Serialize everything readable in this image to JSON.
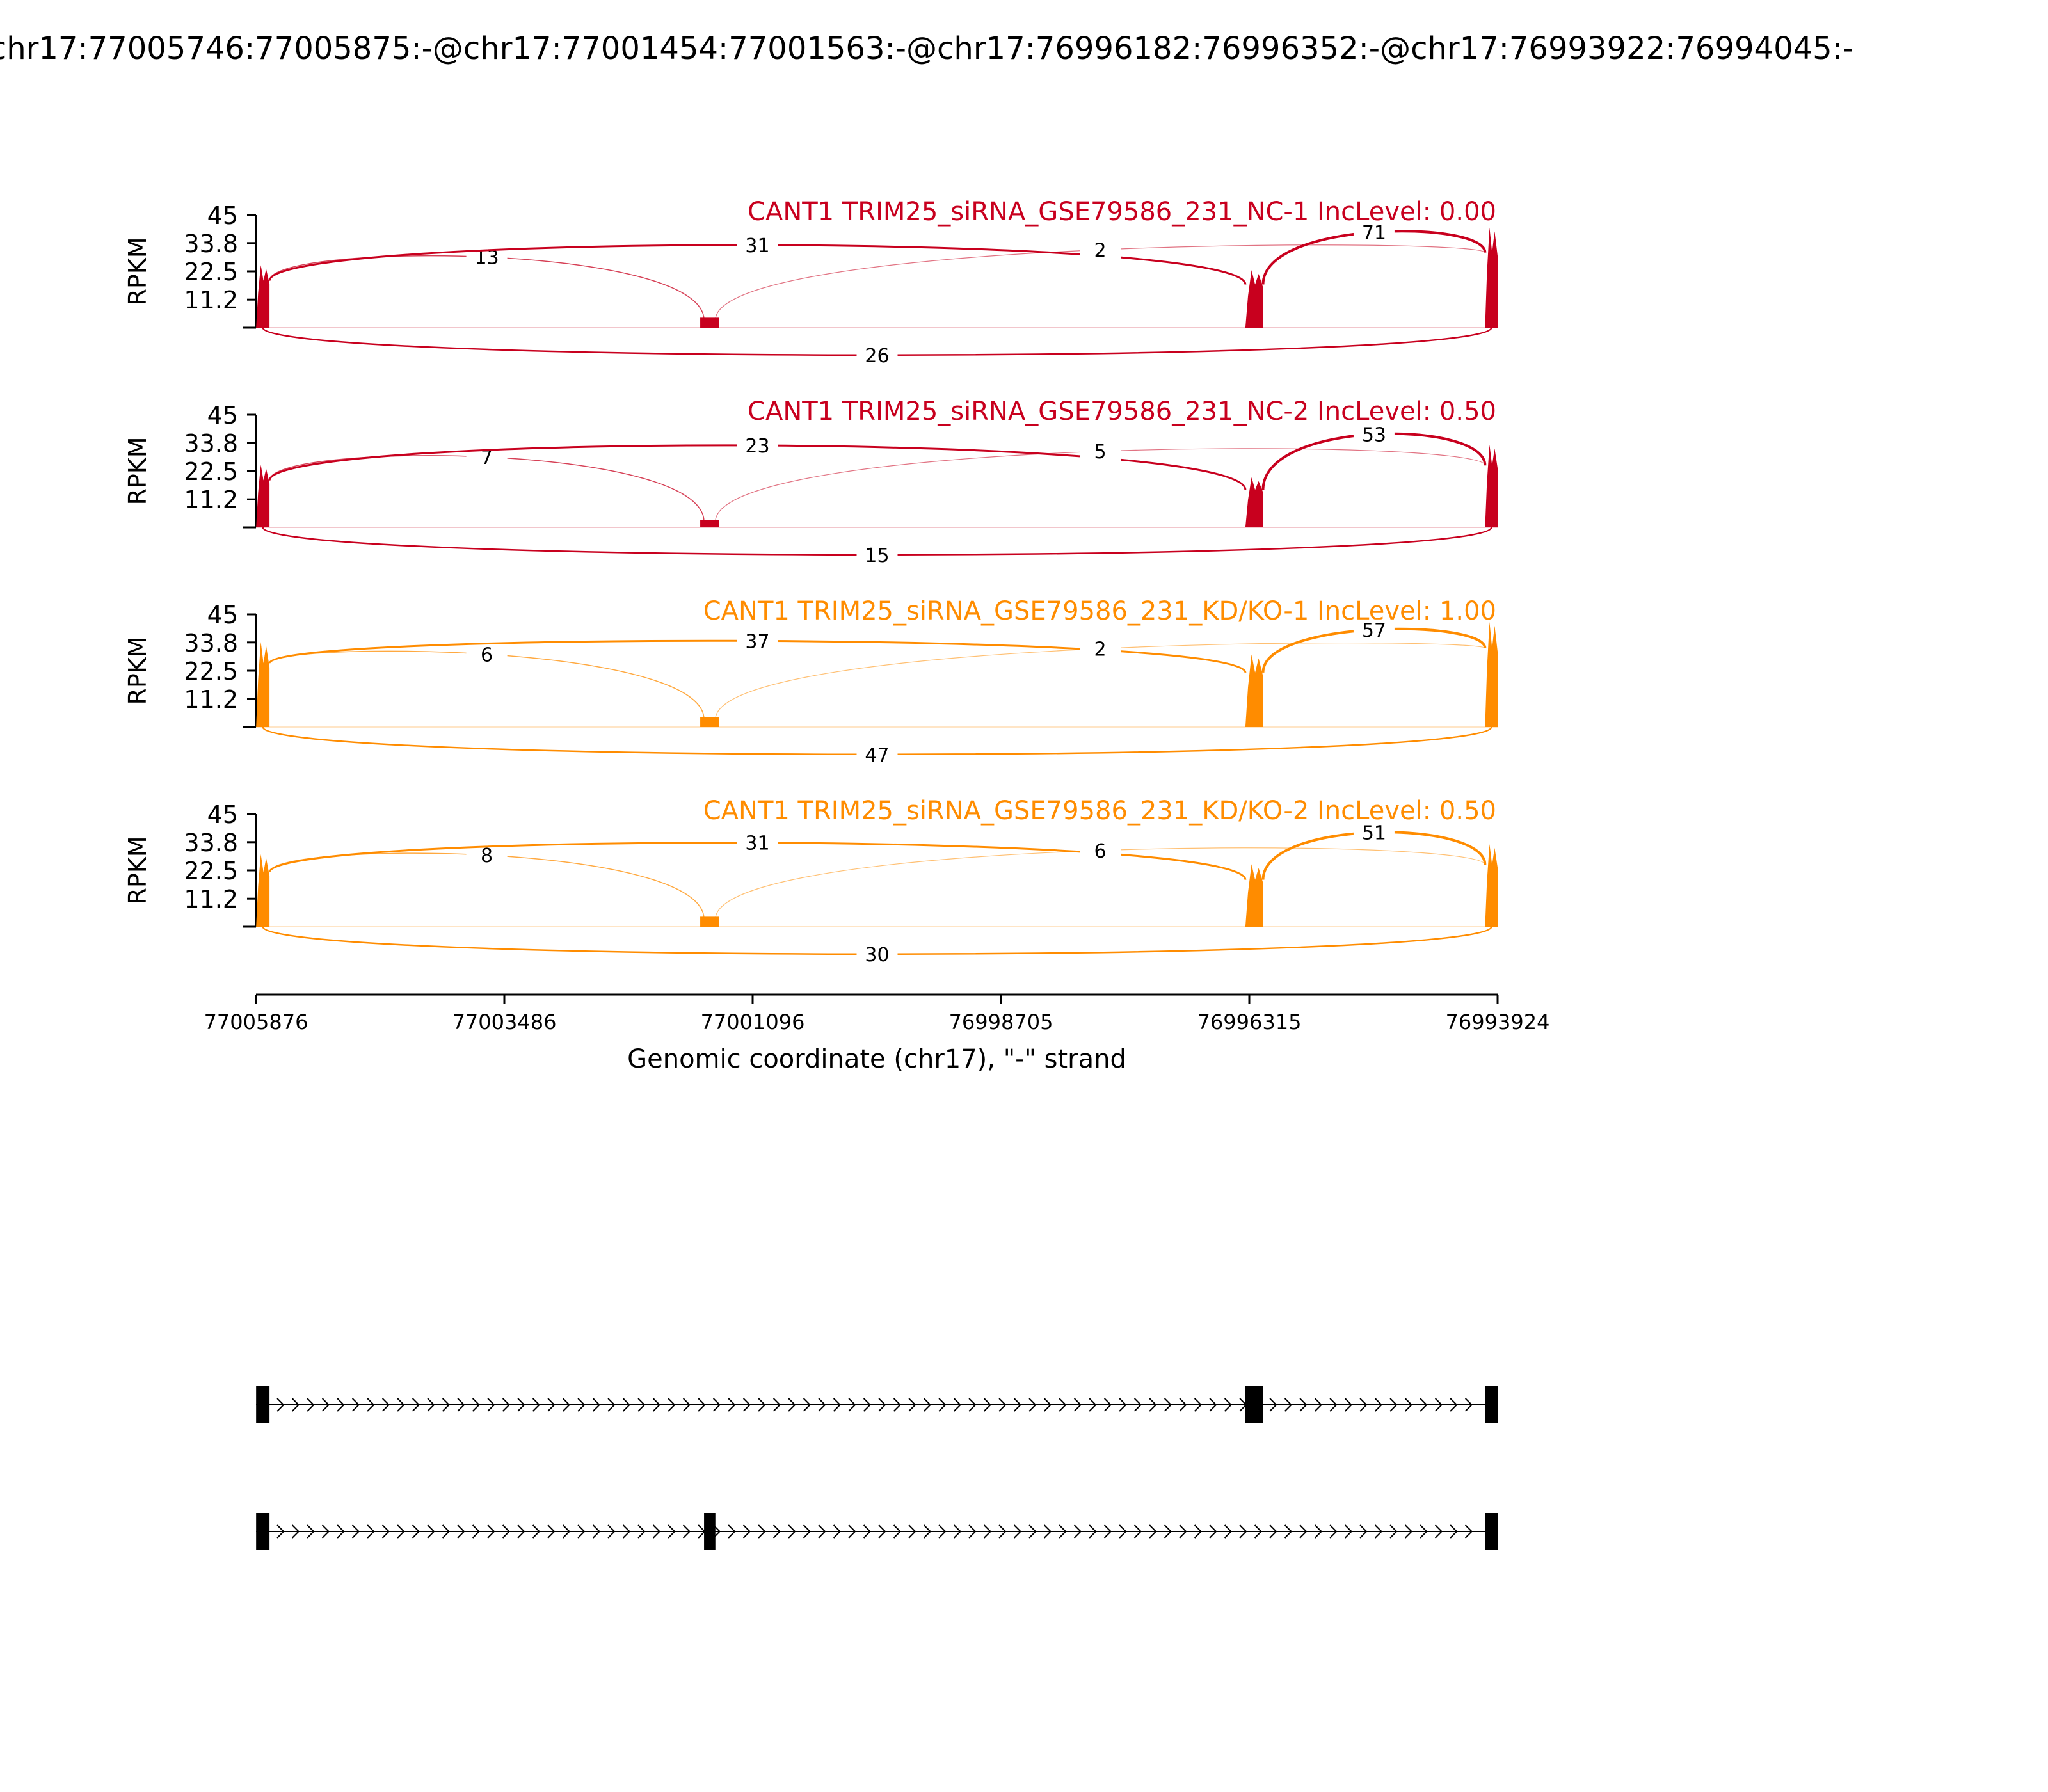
{
  "chart_data": {
    "type": "area",
    "title": "chr17:77005746:77005875:-@chr17:77001454:77001563:-@chr17:76996182:76996352:-@chr17:76993922:76994045:-",
    "xlabel": "Genomic coordinate (chr17), \"-\" strand",
    "ylabel": "RPKM",
    "ylim": [
      0,
      45
    ],
    "yticks": [
      "45",
      "33.8",
      "22.5",
      "11.2"
    ],
    "xlim": [
      77005876,
      76993924
    ],
    "xticks": [
      "77005876",
      "77003486",
      "77001096",
      "76998705",
      "76996315",
      "76993924"
    ],
    "exons": [
      {
        "start": 77005875,
        "end": 77005746
      },
      {
        "start": 77001563,
        "end": 77001454
      },
      {
        "start": 76996352,
        "end": 76996182
      },
      {
        "start": 76994045,
        "end": 76993922
      }
    ],
    "series": [
      {
        "name": "CANT1 TRIM25_siRNA_GSE79586_231_NC-1 IncLevel: 0.00",
        "color": "#c8001e",
        "peaks": [
          25,
          4,
          23,
          40
        ],
        "junctions": {
          "upper_e1_e2": "13",
          "upper_e1_e3": "31",
          "upper_e2_e4": "2",
          "upper_e3_e4": "71",
          "lower_e1_e4": "26"
        }
      },
      {
        "name": "CANT1 TRIM25_siRNA_GSE79586_231_NC-2 IncLevel: 0.50",
        "color": "#c8001e",
        "peaks": [
          25,
          3,
          20,
          33
        ],
        "junctions": {
          "upper_e1_e2": "7",
          "upper_e1_e3": "23",
          "upper_e2_e4": "5",
          "upper_e3_e4": "53",
          "lower_e1_e4": "15"
        }
      },
      {
        "name": "CANT1 TRIM25_siRNA_GSE79586_231_KD/KO-1 IncLevel: 1.00",
        "color": "#ff8c00",
        "peaks": [
          34,
          4,
          29,
          42
        ],
        "junctions": {
          "upper_e1_e2": "6",
          "upper_e1_e3": "37",
          "upper_e2_e4": "2",
          "upper_e3_e4": "57",
          "lower_e1_e4": "47"
        }
      },
      {
        "name": "CANT1 TRIM25_siRNA_GSE79586_231_KD/KO-2 IncLevel: 0.50",
        "color": "#ff8c00",
        "peaks": [
          29,
          4,
          25,
          33
        ],
        "junctions": {
          "upper_e1_e2": "8",
          "upper_e1_e3": "31",
          "upper_e2_e4": "6",
          "upper_e3_e4": "51",
          "lower_e1_e4": "30"
        }
      }
    ],
    "isoforms": [
      {
        "exons": [
          0,
          2,
          3
        ]
      },
      {
        "exons": [
          0,
          1,
          3
        ]
      }
    ]
  }
}
